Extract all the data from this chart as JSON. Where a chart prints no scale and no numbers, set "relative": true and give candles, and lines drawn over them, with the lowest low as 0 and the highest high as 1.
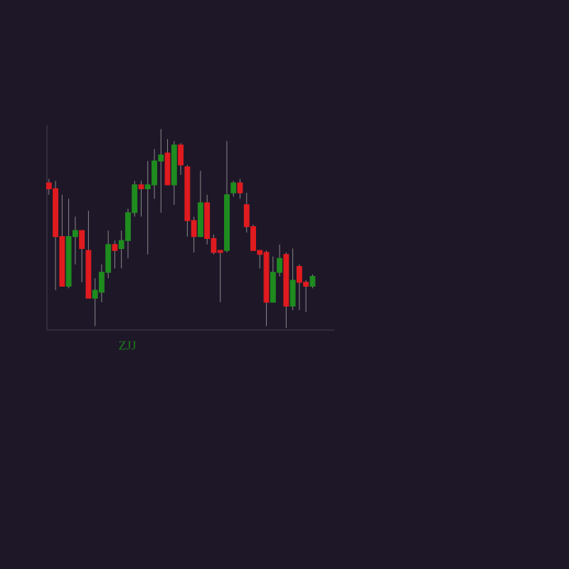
{
  "chart_data": {
    "type": "candlestick",
    "xlabel": "ZJJ",
    "relative": true,
    "categories": [
      null,
      null,
      null,
      null,
      null,
      null,
      null,
      null,
      null,
      null,
      null,
      null,
      null,
      null,
      null,
      null,
      null,
      null,
      null,
      null,
      null,
      null,
      null,
      null,
      null,
      null,
      null,
      null,
      null,
      null,
      null,
      null,
      null,
      null,
      null,
      null,
      null,
      null,
      null,
      null,
      null
    ],
    "ohlc": [
      [
        0.73,
        0.75,
        0.67,
        0.7
      ],
      [
        0.7,
        0.74,
        0.19,
        0.46
      ],
      [
        0.46,
        0.67,
        0.21,
        0.21
      ],
      [
        0.21,
        0.65,
        0.2,
        0.46
      ],
      [
        0.46,
        0.56,
        0.32,
        0.49
      ],
      [
        0.49,
        0.49,
        0.23,
        0.4
      ],
      [
        0.39,
        0.59,
        0.15,
        0.15
      ],
      [
        0.15,
        0.25,
        0.01,
        0.19
      ],
      [
        0.18,
        0.32,
        0.13,
        0.28
      ],
      [
        0.28,
        0.49,
        0.25,
        0.42
      ],
      [
        0.42,
        0.44,
        0.3,
        0.39
      ],
      [
        0.4,
        0.49,
        0.3,
        0.44
      ],
      [
        0.44,
        0.6,
        0.35,
        0.58
      ],
      [
        0.58,
        0.74,
        0.56,
        0.72
      ],
      [
        0.72,
        0.74,
        0.56,
        0.7
      ],
      [
        0.7,
        0.84,
        0.37,
        0.72
      ],
      [
        0.72,
        0.9,
        0.65,
        0.84
      ],
      [
        0.84,
        1.0,
        0.58,
        0.87
      ],
      [
        0.88,
        0.95,
        0.72,
        0.72
      ],
      [
        0.72,
        0.94,
        0.62,
        0.92
      ],
      [
        0.92,
        0.93,
        0.77,
        0.82
      ],
      [
        0.81,
        0.82,
        0.46,
        0.54
      ],
      [
        0.54,
        0.56,
        0.38,
        0.46
      ],
      [
        0.46,
        0.79,
        0.46,
        0.63
      ],
      [
        0.63,
        0.67,
        0.42,
        0.45
      ],
      [
        0.45,
        0.47,
        0.37,
        0.38
      ],
      [
        0.39,
        0.39,
        0.13,
        0.38
      ],
      [
        0.39,
        0.94,
        0.38,
        0.67
      ],
      [
        0.68,
        0.74,
        0.66,
        0.73
      ],
      [
        0.73,
        0.75,
        0.65,
        0.68
      ],
      [
        0.62,
        0.68,
        0.48,
        0.51
      ],
      [
        0.51,
        0.52,
        0.39,
        0.39
      ],
      [
        0.39,
        0.39,
        0.3,
        0.37
      ],
      [
        0.38,
        0.39,
        0.01,
        0.13
      ],
      [
        0.13,
        0.36,
        0.13,
        0.28
      ],
      [
        0.28,
        0.42,
        0.26,
        0.35
      ],
      [
        0.37,
        0.38,
        0.0,
        0.11
      ],
      [
        0.11,
        0.4,
        0.09,
        0.24
      ],
      [
        0.31,
        0.32,
        0.09,
        0.23
      ],
      [
        0.23,
        0.24,
        0.08,
        0.21
      ],
      [
        0.21,
        0.27,
        0.2,
        0.26
      ]
    ],
    "colors": [
      "#e01b1f",
      "#e01b1f",
      "#e01b1f",
      "#1f8c1f",
      "#1f8c1f",
      "#e01b1f",
      "#e01b1f",
      "#1f8c1f",
      "#1f8c1f",
      "#1f8c1f",
      "#e01b1f",
      "#1f8c1f",
      "#1f8c1f",
      "#1f8c1f",
      "#e01b1f",
      "#1f8c1f",
      "#1f8c1f",
      "#1f8c1f",
      "#e01b1f",
      "#1f8c1f",
      "#e01b1f",
      "#e01b1f",
      "#e01b1f",
      "#1f8c1f",
      "#e01b1f",
      "#e01b1f",
      "#e01b1f",
      "#1f8c1f",
      "#1f8c1f",
      "#e01b1f",
      "#e01b1f",
      "#e01b1f",
      "#e01b1f",
      "#e01b1f",
      "#1f8c1f",
      "#1f8c1f",
      "#e01b1f",
      "#1f8c1f",
      "#e01b1f",
      "#e01b1f",
      "#1f8c1f"
    ]
  }
}
